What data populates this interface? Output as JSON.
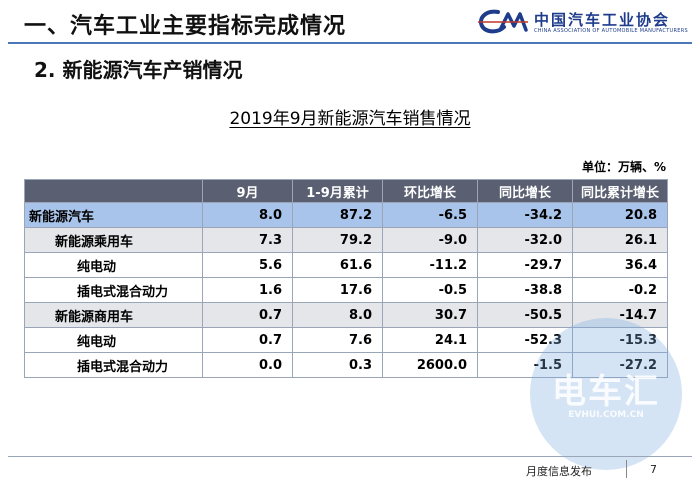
{
  "header": {
    "section_title": "一、汽车工业主要指标完成情况",
    "logo_cn": "中国汽车工业协会",
    "logo_en": "CHINA ASSOCIATION OF AUTOMOBILE MANUFACTURERS",
    "brand_color": "#1f3c8c"
  },
  "sub_title": "2. 新能源汽车产销情况",
  "table_title": "2019年9月新能源汽车销售情况",
  "unit": "单位：万辆、%",
  "table": {
    "headers": [
      "",
      "9月",
      "1-9月累计",
      "环比增长",
      "同比增长",
      "同比累计增长"
    ],
    "rows": [
      {
        "label": "新能源汽车",
        "level": 0,
        "values": [
          "8.0",
          "87.2",
          "-6.5",
          "-34.2",
          "20.8"
        ]
      },
      {
        "label": "新能源乘用车",
        "level": 1,
        "values": [
          "7.3",
          "79.2",
          "-9.0",
          "-32.0",
          "26.1"
        ]
      },
      {
        "label": "纯电动",
        "level": 2,
        "values": [
          "5.6",
          "61.6",
          "-11.2",
          "-29.7",
          "36.4"
        ]
      },
      {
        "label": "插电式混合动力",
        "level": 2,
        "values": [
          "1.6",
          "17.6",
          "-0.5",
          "-38.8",
          "-0.2"
        ]
      },
      {
        "label": "新能源商用车",
        "level": 1,
        "values": [
          "0.7",
          "8.0",
          "30.7",
          "-50.5",
          "-14.7"
        ]
      },
      {
        "label": "纯电动",
        "level": 2,
        "values": [
          "0.7",
          "7.6",
          "24.1",
          "-52.3",
          "-15.3"
        ]
      },
      {
        "label": "插电式混合动力",
        "level": 2,
        "values": [
          "0.0",
          "0.3",
          "2600.0",
          "-1.5",
          "-27.2"
        ]
      }
    ]
  },
  "watermark": {
    "text": "电车汇",
    "sub": "EVHUI.COM.CN"
  },
  "footer": {
    "text": "月度信息发布",
    "page": "7"
  }
}
